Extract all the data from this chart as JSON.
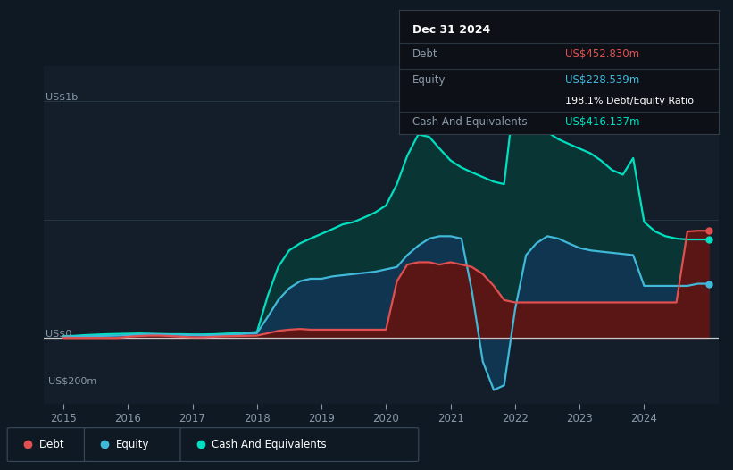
{
  "bg_color": "#0f1923",
  "plot_bg_color": "#131e2a",
  "grid_color": "#2a3a48",
  "zero_line_color": "#c8c8c8",
  "debt_color": "#e05050",
  "equity_color": "#40b8d8",
  "cash_color": "#00e0c0",
  "debt_fill": "#5a1515",
  "equity_fill": "#0f3550",
  "cash_fill": "#0a3535",
  "tooltip_date": "Dec 31 2024",
  "tooltip_debt_label": "Debt",
  "tooltip_debt_val": "US$452.830m",
  "tooltip_equity_label": "Equity",
  "tooltip_equity_val": "US$228.539m",
  "tooltip_ratio": "198.1% Debt/Equity Ratio",
  "tooltip_cash_label": "Cash And Equivalents",
  "tooltip_cash_val": "US$416.137m",
  "legend_debt": "Debt",
  "legend_equity": "Equity",
  "legend_cash": "Cash And Equivalents",
  "x": [
    2015.0,
    2015.17,
    2015.33,
    2015.5,
    2015.67,
    2015.83,
    2016.0,
    2016.17,
    2016.33,
    2016.5,
    2016.67,
    2016.83,
    2017.0,
    2017.17,
    2017.33,
    2017.5,
    2017.67,
    2017.83,
    2018.0,
    2018.17,
    2018.33,
    2018.5,
    2018.67,
    2018.83,
    2019.0,
    2019.17,
    2019.33,
    2019.5,
    2019.67,
    2019.83,
    2020.0,
    2020.17,
    2020.33,
    2020.5,
    2020.67,
    2020.83,
    2021.0,
    2021.17,
    2021.33,
    2021.5,
    2021.67,
    2021.83,
    2022.0,
    2022.17,
    2022.33,
    2022.5,
    2022.67,
    2022.83,
    2023.0,
    2023.17,
    2023.33,
    2023.5,
    2023.67,
    2023.83,
    2024.0,
    2024.17,
    2024.33,
    2024.5,
    2024.67,
    2024.83,
    2025.0
  ],
  "debt": [
    0,
    0,
    0,
    0,
    0,
    0,
    5,
    8,
    10,
    10,
    8,
    5,
    3,
    3,
    5,
    7,
    8,
    9,
    10,
    20,
    30,
    35,
    38,
    35,
    35,
    35,
    35,
    35,
    35,
    35,
    35,
    240,
    310,
    320,
    320,
    310,
    320,
    310,
    300,
    270,
    220,
    160,
    150,
    150,
    150,
    150,
    150,
    150,
    150,
    150,
    150,
    150,
    150,
    150,
    150,
    150,
    150,
    150,
    450,
    453,
    453
  ],
  "equity": [
    5,
    6,
    7,
    8,
    9,
    10,
    12,
    14,
    16,
    15,
    14,
    13,
    12,
    11,
    12,
    13,
    15,
    18,
    20,
    90,
    160,
    210,
    240,
    250,
    250,
    260,
    265,
    270,
    275,
    280,
    290,
    300,
    350,
    390,
    420,
    430,
    430,
    420,
    200,
    -100,
    -220,
    -200,
    120,
    350,
    400,
    430,
    420,
    400,
    380,
    370,
    365,
    360,
    355,
    350,
    220,
    220,
    220,
    220,
    220,
    229,
    229
  ],
  "cash": [
    8,
    9,
    12,
    14,
    16,
    17,
    18,
    19,
    18,
    17,
    16,
    16,
    15,
    15,
    16,
    18,
    20,
    22,
    25,
    180,
    300,
    370,
    400,
    420,
    440,
    460,
    480,
    490,
    510,
    530,
    560,
    650,
    770,
    860,
    850,
    800,
    750,
    720,
    700,
    680,
    660,
    650,
    1050,
    980,
    900,
    870,
    840,
    820,
    800,
    780,
    750,
    710,
    690,
    760,
    490,
    450,
    430,
    420,
    416,
    416,
    416
  ],
  "xlim": [
    2014.7,
    2025.15
  ],
  "ylim_min": -280,
  "ylim_max": 1150,
  "xticks": [
    2015,
    2016,
    2017,
    2018,
    2019,
    2020,
    2021,
    2022,
    2023,
    2024
  ],
  "xtick_labels": [
    "2015",
    "2016",
    "2017",
    "2018",
    "2019",
    "2020",
    "2021",
    "2022",
    "2023",
    "2024"
  ],
  "y_label_1b": "US$1b",
  "y_label_0": "US$0",
  "y_label_neg200": "-US$200m",
  "y_pos_1b": 1000,
  "y_pos_0": 0,
  "y_pos_neg200": -200
}
